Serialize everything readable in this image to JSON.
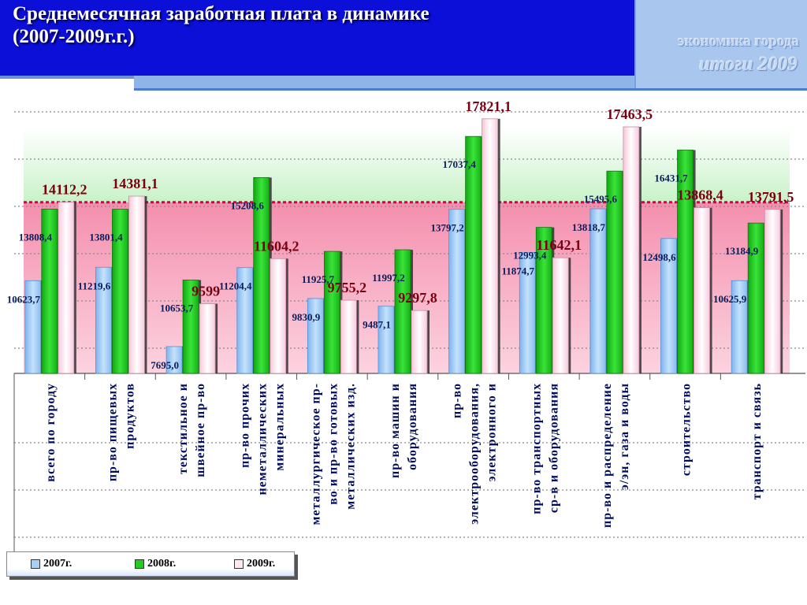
{
  "header": {
    "title": "Среднемесячная заработная плата в динамике",
    "subtitle": "(2007-2009г.г.)"
  },
  "brand": {
    "line1": "экономика города",
    "line2": "итоги  2009"
  },
  "colors": {
    "title_bg": "#0b0fd8",
    "series_2007": "#a8cff5",
    "series_2008": "#22cc22",
    "series_2009": "#ffe8f2",
    "label_2009": "#7a0010",
    "band_green": "#d6f6d6",
    "band_pink": "#f6a7bf"
  },
  "chart_data": {
    "type": "bar",
    "title": "Среднемесячная заработная плата в динамике (2007-2009г.г.)",
    "categories": [
      [
        "всего по городу"
      ],
      [
        "пр-во пищевых",
        "продуктов"
      ],
      [
        "текстильное и",
        "швейное пр-во"
      ],
      [
        "пр-во прочих",
        "неметаллических",
        "минеральных"
      ],
      [
        "металлургическое пр-",
        "во и пр-во готовых",
        "металлических изд."
      ],
      [
        "пр-во машин и",
        "оборудования"
      ],
      [
        "пр-во",
        "электрооборудования,",
        "электронного и"
      ],
      [
        "пр-во транспортных",
        "ср-в и оборудования"
      ],
      [
        "пр-во и распределение",
        "э/эн, газа и воды"
      ],
      [
        "строительство"
      ],
      [
        "транспорт и связь"
      ]
    ],
    "series": [
      {
        "name": "2007г.",
        "values": [
          10623.7,
          11219.6,
          7695.0,
          11204.4,
          9830.9,
          9487.1,
          13797.2,
          11874.7,
          13818.7,
          12498.6,
          10625.9
        ],
        "labels": [
          "10623,7",
          "11219,6",
          "7695,0",
          "11204,4",
          "9830,9",
          "9487,1",
          "13797,2",
          "11874,7",
          "13818,7",
          "12498,6",
          "10625,9"
        ]
      },
      {
        "name": "2008г.",
        "values": [
          13808.4,
          13801.4,
          10653.7,
          15208.6,
          11925.7,
          11997.2,
          17037.4,
          12993.4,
          15495.6,
          16431.7,
          13184.9
        ],
        "labels": [
          "13808,4",
          "13801,4",
          "10653,7",
          "15208,6",
          "11925,7",
          "11997,2",
          "17037,4",
          "12993,4",
          "15495,6",
          "16431,7",
          "13184,9"
        ]
      },
      {
        "name": "2009г.",
        "values": [
          14112.2,
          14381.1,
          9599,
          11604.2,
          9755.2,
          9297.8,
          17821.1,
          11642.1,
          17463.5,
          13868.4,
          13791.5
        ],
        "labels": [
          "14112,2",
          "14381,1",
          "9599",
          "11604,2",
          "9755,2",
          "9297,8",
          "17821,1",
          "11642,1",
          "17463,5",
          "13868,4",
          "13791,5"
        ]
      }
    ],
    "ylim": [
      6500,
      18200
    ],
    "reference_value": 14112.2,
    "grid": true,
    "legend_position": "bottom-left"
  }
}
